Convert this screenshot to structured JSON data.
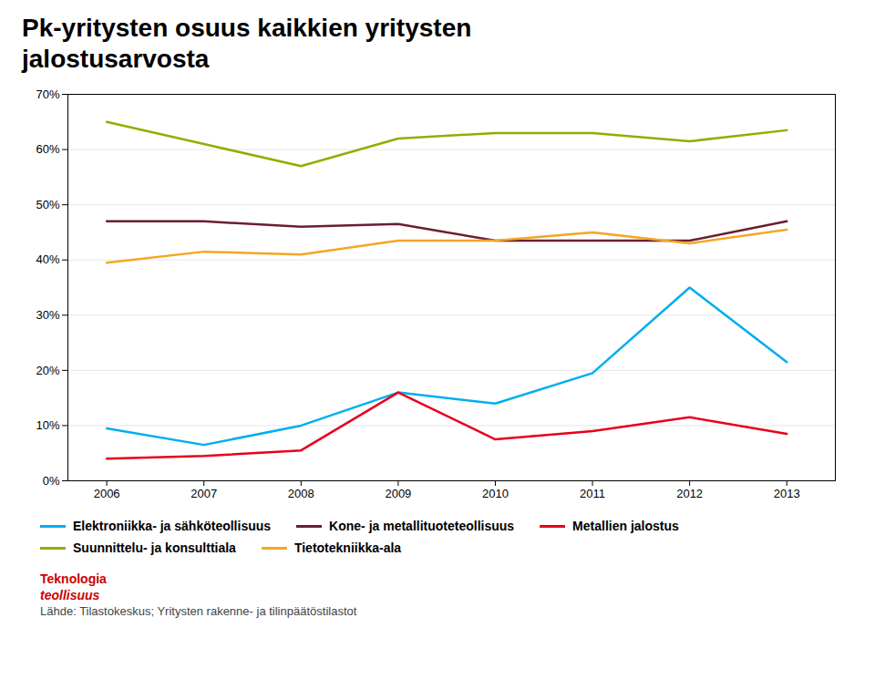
{
  "chart_data": {
    "type": "line",
    "title": "Pk-yritysten osuus kaikkien yritysten\njalostusarvosta",
    "x": [
      2006,
      2007,
      2008,
      2009,
      2010,
      2011,
      2012,
      2013
    ],
    "series": [
      {
        "name": "Elektroniikka- ja sähköteollisuus",
        "color": "#00AEEF",
        "values": [
          9.5,
          6.5,
          10.0,
          16.0,
          14.0,
          19.5,
          35.0,
          21.5
        ]
      },
      {
        "name": "Kone- ja metallituoteteollisuus",
        "color": "#6B1E2E",
        "values": [
          47.0,
          47.0,
          46.0,
          46.5,
          43.5,
          43.5,
          43.5,
          47.0
        ]
      },
      {
        "name": "Metallien jalostus",
        "color": "#E8001C",
        "values": [
          4.0,
          4.5,
          5.5,
          16.0,
          7.5,
          9.0,
          11.5,
          8.5
        ]
      },
      {
        "name": "Suunnittelu- ja konsulttiala",
        "color": "#8DB000",
        "values": [
          65.0,
          61.0,
          57.0,
          62.0,
          63.0,
          63.0,
          61.5,
          63.5
        ]
      },
      {
        "name": "Tietotekniikka-ala",
        "color": "#F5A623",
        "values": [
          39.5,
          41.5,
          41.0,
          43.5,
          43.5,
          45.0,
          43.0,
          45.5
        ]
      }
    ],
    "xlim": [
      2005.6,
      2013.5
    ],
    "xticks": [
      2006,
      2007,
      2008,
      2009,
      2010,
      2011,
      2012,
      2013
    ],
    "ylim": [
      0,
      70
    ],
    "yticks": [
      {
        "value": 0,
        "label": "0%"
      },
      {
        "value": 10,
        "label": "10%"
      },
      {
        "value": 20,
        "label": "20%"
      },
      {
        "value": 30,
        "label": "30%"
      },
      {
        "value": 40,
        "label": "40%"
      },
      {
        "value": 50,
        "label": "50%"
      },
      {
        "value": 60,
        "label": "60%"
      },
      {
        "value": 70,
        "label": "70%"
      }
    ],
    "grid": true,
    "legend": "bottom",
    "annotations": [
      {
        "text": "Teknologia",
        "color": "#CC0000"
      },
      {
        "text": "teollisuus",
        "color": "#CC0000"
      },
      {
        "text": "Lähde: Tilastokeskus; Yritysten rakenne- ja tilinpäätöstilastot",
        "color": "#444444"
      }
    ]
  }
}
